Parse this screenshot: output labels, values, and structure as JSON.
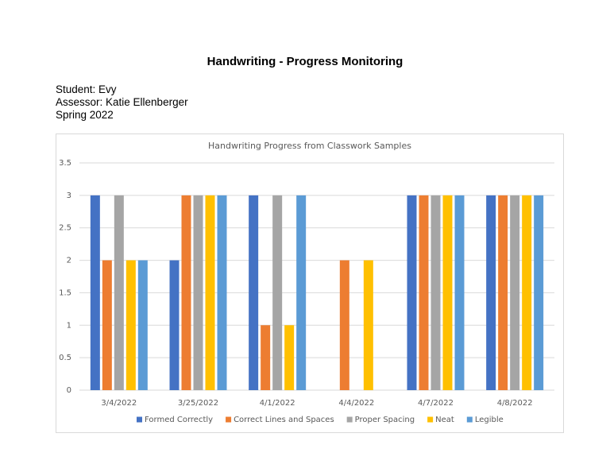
{
  "header": {
    "title": "Handwriting - Progress Monitoring",
    "lines": [
      "Student: Evy",
      "Assessor: Katie Ellenberger",
      "Spring 2022"
    ]
  },
  "chart_data": {
    "type": "bar",
    "title": "Handwriting Progress from Classwork Samples",
    "categories": [
      "3/4/2022",
      "3/25/2022",
      "4/1/2022",
      "4/4/2022",
      "4/7/2022",
      "4/8/2022"
    ],
    "series": [
      {
        "name": "Formed Correctly",
        "color": "#4472c4",
        "values": [
          3,
          2,
          3,
          null,
          3,
          3
        ]
      },
      {
        "name": "Correct Lines and Spaces",
        "color": "#ed7d31",
        "values": [
          2,
          3,
          1,
          2,
          3,
          3
        ]
      },
      {
        "name": "Proper Spacing",
        "color": "#a5a5a5",
        "values": [
          3,
          3,
          3,
          null,
          3,
          3
        ]
      },
      {
        "name": "Neat",
        "color": "#ffc000",
        "values": [
          2,
          3,
          1,
          2,
          3,
          3
        ]
      },
      {
        "name": "Legible",
        "color": "#5b9bd5",
        "values": [
          2,
          3,
          3,
          null,
          3,
          3
        ]
      }
    ],
    "ylim": [
      0,
      3.5
    ],
    "yticks": [
      0,
      0.5,
      1,
      1.5,
      2,
      2.5,
      3,
      3.5
    ],
    "grid": true,
    "legend": "bottom"
  }
}
